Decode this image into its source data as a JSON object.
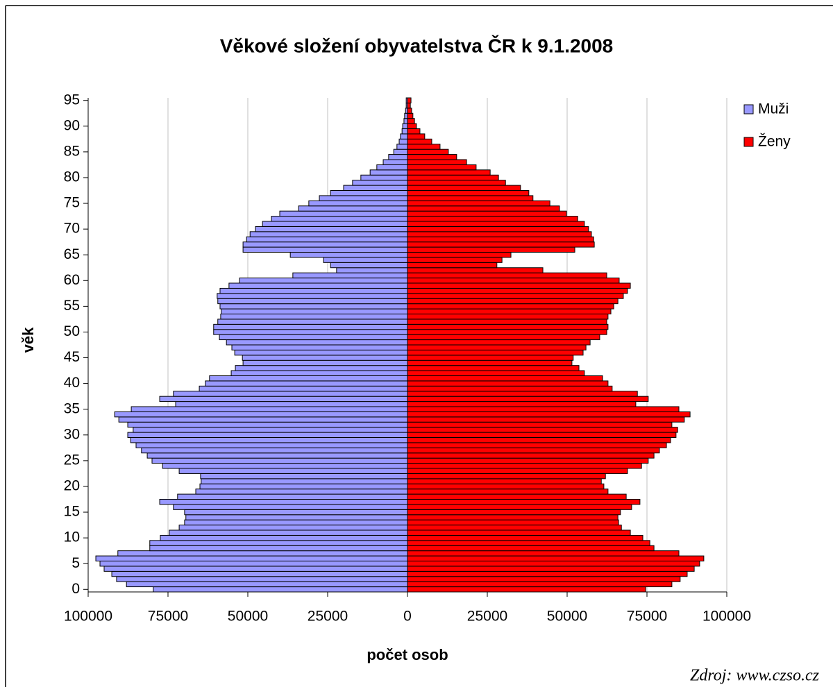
{
  "chart_data": {
    "type": "pyramid",
    "title": "Věkové složení obyvatelstva ČR k 9.1.2008",
    "y_label": "věk",
    "x_label": "počet osob",
    "annotation": "Zdroj: www.czso.cz",
    "y": [
      0,
      1,
      2,
      3,
      4,
      5,
      6,
      7,
      8,
      9,
      10,
      11,
      12,
      13,
      14,
      15,
      16,
      17,
      18,
      19,
      20,
      21,
      22,
      23,
      24,
      25,
      26,
      27,
      28,
      29,
      30,
      31,
      32,
      33,
      34,
      35,
      36,
      37,
      38,
      39,
      40,
      41,
      42,
      43,
      44,
      45,
      46,
      47,
      48,
      49,
      50,
      51,
      52,
      53,
      54,
      55,
      56,
      57,
      58,
      59,
      60,
      61,
      62,
      63,
      64,
      65,
      66,
      67,
      68,
      69,
      70,
      71,
      72,
      73,
      74,
      75,
      76,
      77,
      78,
      79,
      80,
      81,
      82,
      83,
      84,
      85,
      86,
      87,
      88,
      89,
      90,
      91,
      92,
      93,
      94,
      95
    ],
    "series": [
      {
        "name": "Muži",
        "color": "#9999ff",
        "values": [
          -79600,
          -88000,
          -91100,
          -92600,
          -95000,
          -96300,
          -97600,
          -90700,
          -80700,
          -80700,
          -77400,
          -74600,
          -71500,
          -69800,
          -69400,
          -69800,
          -73300,
          -77600,
          -72000,
          -66300,
          -65000,
          -64600,
          -64800,
          -71500,
          -76700,
          -80000,
          -81500,
          -83300,
          -85000,
          -86700,
          -87600,
          -85900,
          -87600,
          -90400,
          -91700,
          -86500,
          -72600,
          -77600,
          -73300,
          -65200,
          -63300,
          -62000,
          -55200,
          -53900,
          -51500,
          -51700,
          -54100,
          -55000,
          -56700,
          -58900,
          -60700,
          -60700,
          -59400,
          -58500,
          -58300,
          -58700,
          -59400,
          -59600,
          -58700,
          -55900,
          -52600,
          -35900,
          -22200,
          -24100,
          -26300,
          -36700,
          -51500,
          -51500,
          -50400,
          -49300,
          -47600,
          -45400,
          -42600,
          -40000,
          -34100,
          -30900,
          -27600,
          -24100,
          -20000,
          -17200,
          -14600,
          -11700,
          -9600,
          -7600,
          -5900,
          -4300,
          -3300,
          -2600,
          -2200,
          -1700,
          -1500,
          -1100,
          -900,
          -600,
          -400,
          -400
        ]
      },
      {
        "name": "Ženy",
        "color": "#ff0000",
        "values": [
          74600,
          82800,
          85400,
          87600,
          89800,
          91500,
          92800,
          85000,
          77200,
          75900,
          73700,
          69800,
          67000,
          66100,
          65900,
          66700,
          70200,
          72800,
          68500,
          62800,
          61500,
          60700,
          62000,
          68900,
          73300,
          75400,
          77200,
          78900,
          81100,
          82400,
          84100,
          84600,
          82800,
          86700,
          88500,
          85000,
          71500,
          75400,
          72000,
          64100,
          62800,
          61100,
          55400,
          53700,
          51500,
          51900,
          55000,
          55900,
          57200,
          60200,
          62400,
          62800,
          62400,
          62800,
          63700,
          64600,
          65900,
          67600,
          68900,
          69800,
          66300,
          62400,
          42400,
          28000,
          29600,
          32400,
          52400,
          58500,
          58300,
          57600,
          56700,
          55400,
          53300,
          49800,
          47600,
          44600,
          39300,
          38000,
          35400,
          30700,
          28500,
          25900,
          21500,
          18500,
          15400,
          12800,
          10200,
          7600,
          5400,
          3900,
          2800,
          2200,
          1700,
          1300,
          900,
          1100
        ]
      }
    ],
    "xlim": [
      -100000,
      100000
    ],
    "xticks": [
      {
        "value": -100000,
        "label": "100000"
      },
      {
        "value": -75000,
        "label": "75000"
      },
      {
        "value": -50000,
        "label": "50000"
      },
      {
        "value": -25000,
        "label": "25000"
      },
      0,
      25000,
      50000,
      75000,
      100000
    ],
    "ylim": [
      -0.5,
      95.5
    ],
    "yticks": [
      0,
      5,
      10,
      15,
      20,
      25,
      30,
      35,
      40,
      45,
      50,
      55,
      60,
      65,
      70,
      75,
      80,
      85,
      90,
      95
    ],
    "grid": true,
    "legend": "right"
  }
}
